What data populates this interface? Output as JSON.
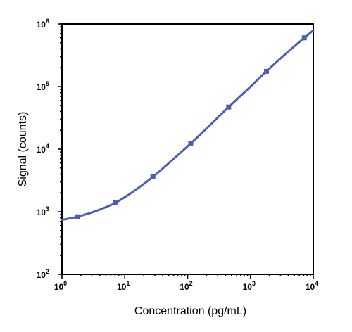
{
  "chart_data": {
    "type": "line",
    "title": "",
    "xlabel": "Concentration (pg/mL)",
    "ylabel": "Signal (counts)",
    "x_scale": "log",
    "y_scale": "log",
    "xlim": [
      1,
      10000
    ],
    "ylim": [
      100,
      1000000
    ],
    "x_ticks": [
      {
        "value": 1,
        "base": "10",
        "exp": "0"
      },
      {
        "value": 10,
        "base": "10",
        "exp": "1"
      },
      {
        "value": 100,
        "base": "10",
        "exp": "2"
      },
      {
        "value": 1000,
        "base": "10",
        "exp": "3"
      },
      {
        "value": 10000,
        "base": "10",
        "exp": "4"
      }
    ],
    "y_ticks": [
      {
        "value": 100,
        "base": "10",
        "exp": "2"
      },
      {
        "value": 1000,
        "base": "10",
        "exp": "3"
      },
      {
        "value": 10000,
        "base": "10",
        "exp": "4"
      },
      {
        "value": 100000,
        "base": "10",
        "exp": "5"
      },
      {
        "value": 1000000,
        "base": "10",
        "exp": "6"
      }
    ],
    "grid": false,
    "legend": "none",
    "color": "#4a5fad",
    "points": [
      {
        "x": 1.76,
        "y": 830
      },
      {
        "x": 7.0,
        "y": 1380
      },
      {
        "x": 28.0,
        "y": 3600
      },
      {
        "x": 112,
        "y": 12300
      },
      {
        "x": 450,
        "y": 47000
      },
      {
        "x": 1800,
        "y": 175000
      },
      {
        "x": 7200,
        "y": 600000
      }
    ],
    "fit_curve": [
      {
        "x": 1,
        "y": 740
      },
      {
        "x": 1.76,
        "y": 830
      },
      {
        "x": 3.5,
        "y": 1030
      },
      {
        "x": 7.0,
        "y": 1380
      },
      {
        "x": 14,
        "y": 2140
      },
      {
        "x": 28.0,
        "y": 3600
      },
      {
        "x": 56,
        "y": 6600
      },
      {
        "x": 112,
        "y": 12300
      },
      {
        "x": 225,
        "y": 24000
      },
      {
        "x": 450,
        "y": 47000
      },
      {
        "x": 900,
        "y": 90000
      },
      {
        "x": 1800,
        "y": 175000
      },
      {
        "x": 3600,
        "y": 330000
      },
      {
        "x": 7200,
        "y": 600000
      },
      {
        "x": 10000,
        "y": 790000
      }
    ]
  }
}
